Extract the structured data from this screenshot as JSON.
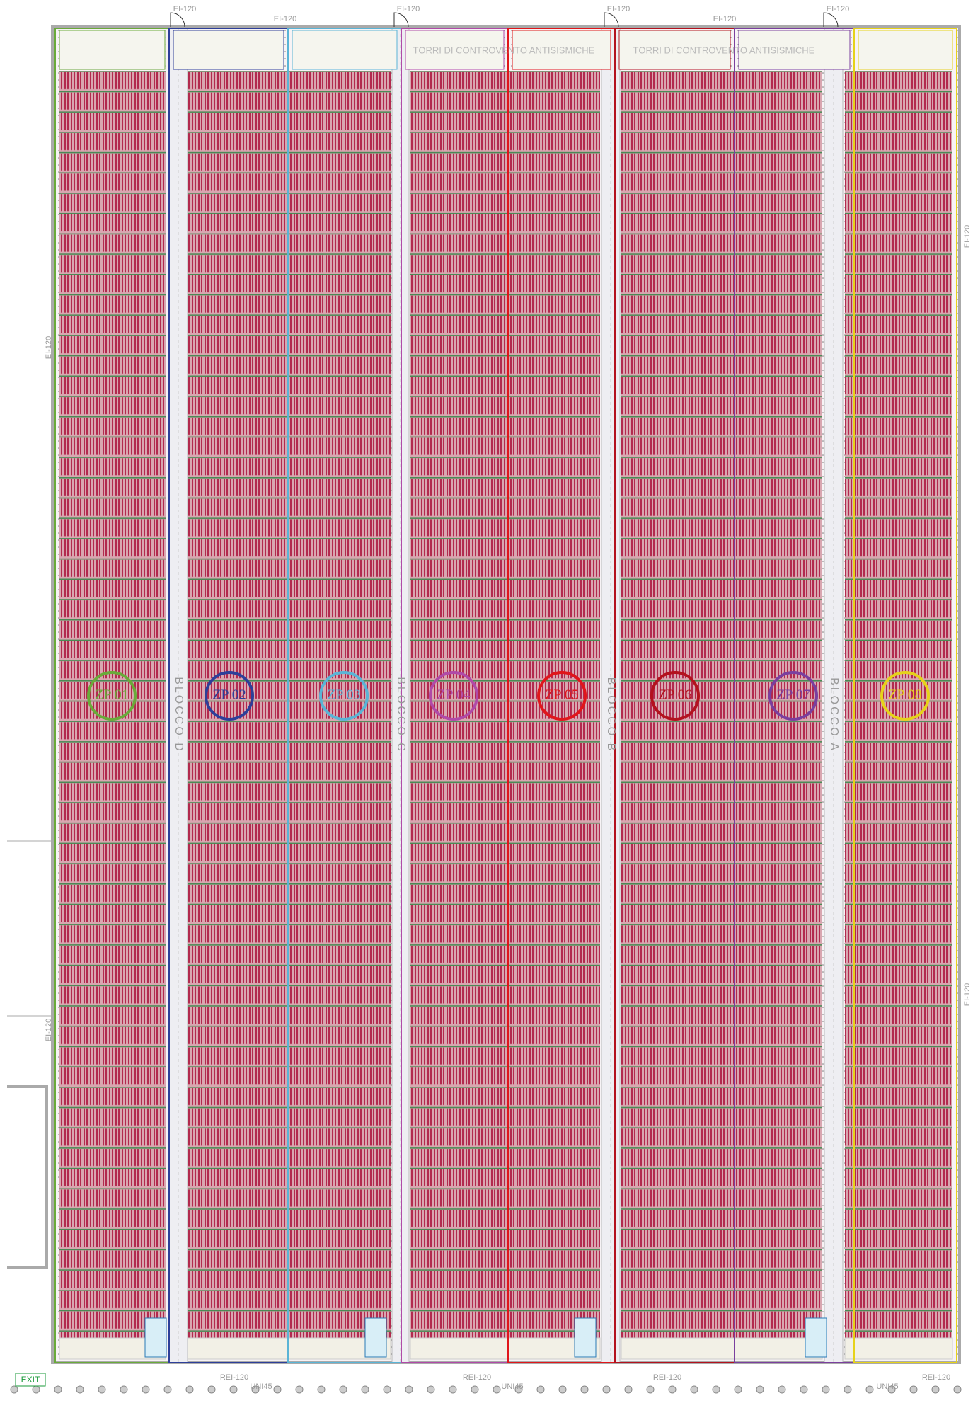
{
  "zones": [
    {
      "label": "ZP 01",
      "color": "#6aaa3a"
    },
    {
      "label": "ZP 02",
      "color": "#2e3f99"
    },
    {
      "label": "ZP 03",
      "color": "#5ab4d6"
    },
    {
      "label": "ZP 04",
      "color": "#b04aa8"
    },
    {
      "label": "ZP 05",
      "color": "#e0161b"
    },
    {
      "label": "ZP 06",
      "color": "#b3121e"
    },
    {
      "label": "ZP 07",
      "color": "#7a3f9e"
    },
    {
      "label": "ZP 08",
      "color": "#e6d21a"
    }
  ],
  "blocks": [
    "BLOCCO D",
    "BLOCCO C",
    "BLOCCO B",
    "BLOCCO A"
  ],
  "notes": [
    "TORRI DI CONTROVENTO ANTISISMICHE",
    "TORRI DI CONTROVENTO ANTISISMICHE"
  ],
  "door_labels": [
    "EI-120",
    "EI-120",
    "EI-120",
    "EI-120",
    "EI-120",
    "EI-120"
  ],
  "wall_labels": [
    "EI-120",
    "EI-120",
    "EI-120",
    "EI-120"
  ],
  "bottom_labels": [
    "REI-120",
    "REI-120",
    "REI-120",
    "REI-120",
    "UNI45",
    "UNI45",
    "UNI45"
  ],
  "exit": "EXIT"
}
